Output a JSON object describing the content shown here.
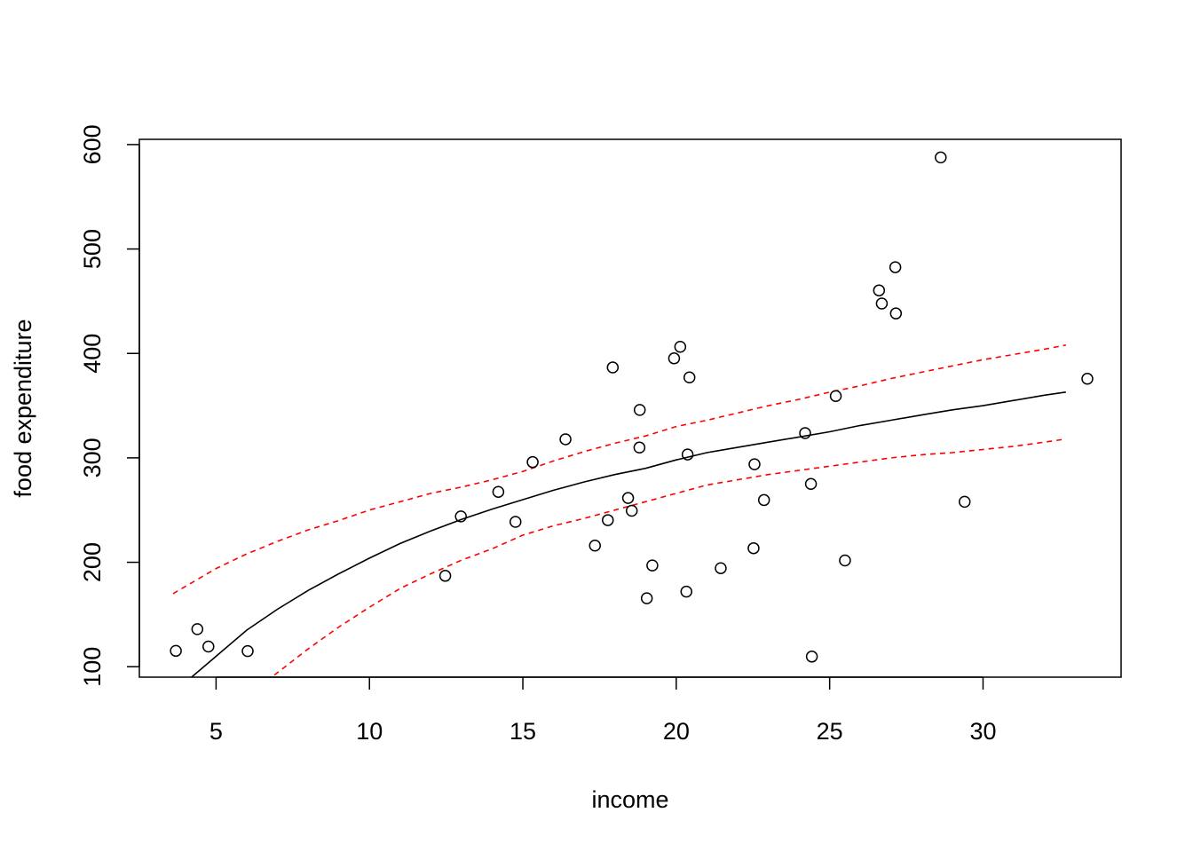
{
  "chart_data": {
    "type": "scatter",
    "title": "",
    "xlabel": "income",
    "ylabel": "food expenditure",
    "xlim": [
      2.5,
      34.5
    ],
    "ylim": [
      90,
      605
    ],
    "x_ticks": [
      5,
      10,
      15,
      20,
      25,
      30
    ],
    "y_ticks": [
      100,
      200,
      300,
      400,
      500,
      600
    ],
    "grid": false,
    "legend": "none",
    "points": [
      {
        "x": 3.69,
        "y": 115.2
      },
      {
        "x": 4.39,
        "y": 135.98
      },
      {
        "x": 4.75,
        "y": 119.34
      },
      {
        "x": 6.03,
        "y": 114.96
      },
      {
        "x": 12.47,
        "y": 187.05
      },
      {
        "x": 12.98,
        "y": 243.92
      },
      {
        "x": 14.2,
        "y": 267.43
      },
      {
        "x": 14.76,
        "y": 238.71
      },
      {
        "x": 15.32,
        "y": 295.94
      },
      {
        "x": 16.39,
        "y": 317.78
      },
      {
        "x": 17.35,
        "y": 216.0
      },
      {
        "x": 17.77,
        "y": 240.35
      },
      {
        "x": 17.93,
        "y": 386.57
      },
      {
        "x": 18.43,
        "y": 261.53
      },
      {
        "x": 18.55,
        "y": 249.34
      },
      {
        "x": 18.8,
        "y": 309.87
      },
      {
        "x": 18.81,
        "y": 345.89
      },
      {
        "x": 19.04,
        "y": 165.54
      },
      {
        "x": 19.22,
        "y": 196.98
      },
      {
        "x": 19.93,
        "y": 395.26
      },
      {
        "x": 20.13,
        "y": 406.34
      },
      {
        "x": 20.33,
        "y": 171.92
      },
      {
        "x": 20.37,
        "y": 303.23
      },
      {
        "x": 20.43,
        "y": 377.04
      },
      {
        "x": 21.45,
        "y": 194.35
      },
      {
        "x": 22.52,
        "y": 213.48
      },
      {
        "x": 22.55,
        "y": 293.87
      },
      {
        "x": 22.86,
        "y": 259.61
      },
      {
        "x": 24.2,
        "y": 323.71
      },
      {
        "x": 24.39,
        "y": 275.02
      },
      {
        "x": 24.42,
        "y": 109.71
      },
      {
        "x": 25.2,
        "y": 359.19
      },
      {
        "x": 25.5,
        "y": 201.77
      },
      {
        "x": 26.61,
        "y": 460.36
      },
      {
        "x": 26.7,
        "y": 447.76
      },
      {
        "x": 27.14,
        "y": 482.55
      },
      {
        "x": 27.16,
        "y": 438.29
      },
      {
        "x": 28.62,
        "y": 587.66
      },
      {
        "x": 29.4,
        "y": 257.95
      },
      {
        "x": 33.4,
        "y": 375.73
      }
    ],
    "series": [
      {
        "style": "solid",
        "color": "#000000",
        "x": [
          4.2,
          5,
          6,
          7,
          8,
          9,
          10,
          11,
          12,
          13,
          14,
          15,
          16,
          17,
          18,
          19,
          20,
          21,
          22,
          23,
          24,
          25,
          26,
          27,
          28,
          29,
          30,
          31,
          32,
          32.7
        ],
        "y": [
          90,
          110,
          135,
          155,
          173,
          189,
          204,
          218,
          230,
          241,
          251,
          260,
          269,
          277,
          284,
          290,
          298,
          305,
          310,
          315,
          320,
          325,
          331,
          336,
          341,
          346,
          350,
          355,
          360,
          363
        ]
      },
      {
        "style": "dashed",
        "color": "#ff0000",
        "x": [
          3.6,
          5,
          6,
          7,
          8,
          9,
          10,
          11,
          12,
          13,
          14,
          15,
          16,
          17,
          18,
          19,
          20,
          21,
          22,
          23,
          24,
          25,
          26,
          27,
          28,
          29,
          30,
          31,
          32,
          32.7
        ],
        "y": [
          170,
          194,
          208,
          220,
          231,
          240,
          250,
          258,
          266,
          272,
          279,
          287,
          297,
          306,
          314,
          321,
          330,
          336,
          343,
          350,
          356,
          363,
          369,
          376,
          382,
          388,
          394,
          399,
          404,
          408
        ]
      },
      {
        "style": "dashed",
        "color": "#ff0000",
        "x": [
          6.9,
          8,
          9,
          10,
          11,
          12,
          13,
          14,
          15,
          16,
          17,
          18,
          19,
          20,
          21,
          22,
          23,
          24,
          25,
          26,
          27,
          28,
          29,
          30,
          31,
          32,
          32.7
        ],
        "y": [
          92,
          117,
          138,
          157,
          175,
          189,
          202,
          213,
          226,
          235,
          242,
          250,
          258,
          266,
          274,
          279,
          284,
          288,
          292,
          296,
          300,
          303,
          305,
          308,
          311,
          315,
          318
        ]
      }
    ]
  }
}
